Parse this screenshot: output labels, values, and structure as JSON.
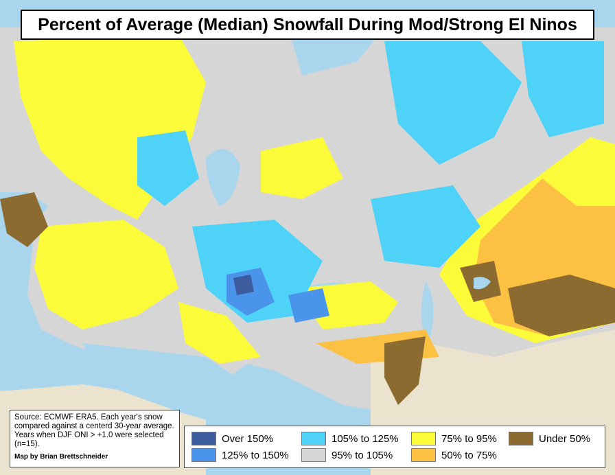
{
  "title": "Percent of Average (Median) Snowfall During Mod/Strong El Ninos",
  "source_note": "Source: ECMWF ERA5. Each year's snow compared against a centerd 30-year average. Years when DJF ONI > +1.0 were selected (n=15).",
  "credit": "Map by Brian Brettschneider",
  "legend": [
    {
      "label": "Over 150%",
      "color": "#3d5c9e"
    },
    {
      "label": "125% to 150%",
      "color": "#4a94ec"
    },
    {
      "label": "105% to 125%",
      "color": "#4fd2f7"
    },
    {
      "label": "95% to 105%",
      "color": "#d6d6d6"
    },
    {
      "label": "75% to 95%",
      "color": "#fbfb3a"
    },
    {
      "label": "50% to 75%",
      "color": "#fcc043"
    },
    {
      "label": "Under 50%",
      "color": "#8c6b30"
    }
  ]
}
